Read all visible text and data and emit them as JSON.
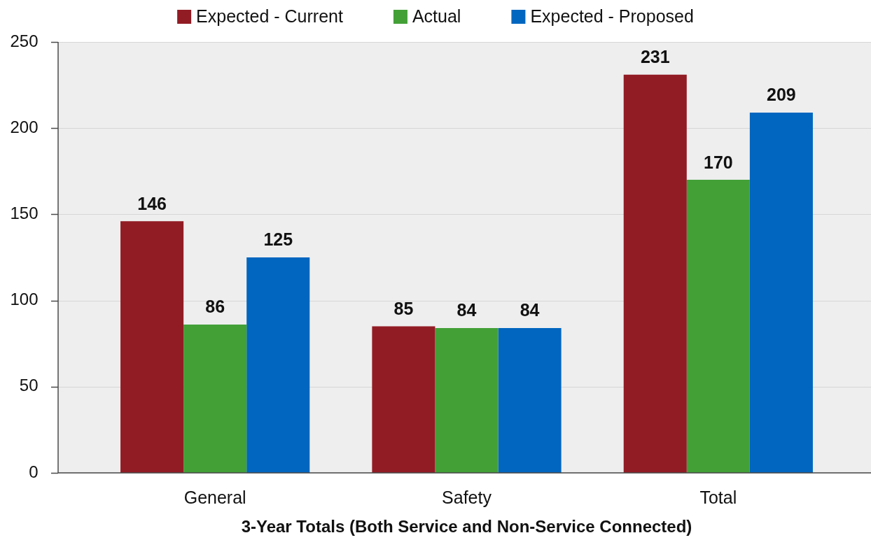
{
  "chart_data": {
    "type": "bar",
    "xlabel": "3-Year Totals (Both Service and Non-Service Connected)",
    "categories": [
      "General",
      "Safety",
      "Total"
    ],
    "series": [
      {
        "name": "Expected - Current",
        "color": "#921c24",
        "values": [
          146,
          85,
          231
        ]
      },
      {
        "name": "Actual",
        "color": "#43a037",
        "values": [
          86,
          84,
          170
        ]
      },
      {
        "name": "Expected - Proposed",
        "color": "#0066bf",
        "values": [
          125,
          84,
          209
        ]
      }
    ],
    "ylim": [
      0,
      250
    ],
    "yticks": [
      0,
      50,
      100,
      150,
      200,
      250
    ],
    "grid": "y",
    "legend": "top",
    "data_labels": true
  }
}
